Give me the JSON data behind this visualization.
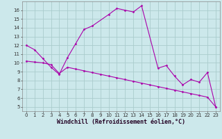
{
  "xlabel": "Windchill (Refroidissement éolien,°C)",
  "bg_color": "#cce8eb",
  "grid_color": "#aacccc",
  "line_color": "#aa00aa",
  "x_upper": [
    0,
    1,
    2,
    3,
    4,
    5,
    6,
    7,
    8,
    10,
    11,
    12,
    13,
    14,
    16,
    17,
    18,
    19,
    20,
    21,
    22,
    23
  ],
  "y_upper": [
    12.0,
    11.5,
    10.5,
    9.5,
    8.7,
    10.6,
    12.2,
    13.8,
    14.2,
    15.5,
    16.2,
    16.0,
    15.8,
    16.5,
    9.4,
    9.7,
    8.5,
    7.5,
    8.1,
    7.8,
    8.9,
    5.0
  ],
  "x_lower": [
    0,
    1,
    2,
    3,
    4,
    5,
    6,
    7,
    8,
    9,
    10,
    11,
    12,
    13,
    14,
    15,
    16,
    17,
    18,
    19,
    20,
    21,
    22,
    23
  ],
  "y_lower": [
    10.2,
    10.1,
    10.0,
    9.8,
    8.8,
    9.5,
    9.3,
    9.1,
    8.9,
    8.7,
    8.5,
    8.3,
    8.1,
    7.9,
    7.7,
    7.5,
    7.3,
    7.1,
    6.9,
    6.7,
    6.5,
    6.3,
    6.1,
    5.0
  ],
  "xlim": [
    -0.5,
    23.5
  ],
  "ylim": [
    4.5,
    17.0
  ],
  "xticks": [
    0,
    1,
    2,
    3,
    4,
    5,
    6,
    7,
    8,
    9,
    10,
    11,
    12,
    13,
    14,
    15,
    16,
    17,
    18,
    19,
    20,
    21,
    22,
    23
  ],
  "yticks": [
    5,
    6,
    7,
    8,
    9,
    10,
    11,
    12,
    13,
    14,
    15,
    16
  ],
  "tick_fontsize": 5.0,
  "xlabel_fontsize": 6.0
}
